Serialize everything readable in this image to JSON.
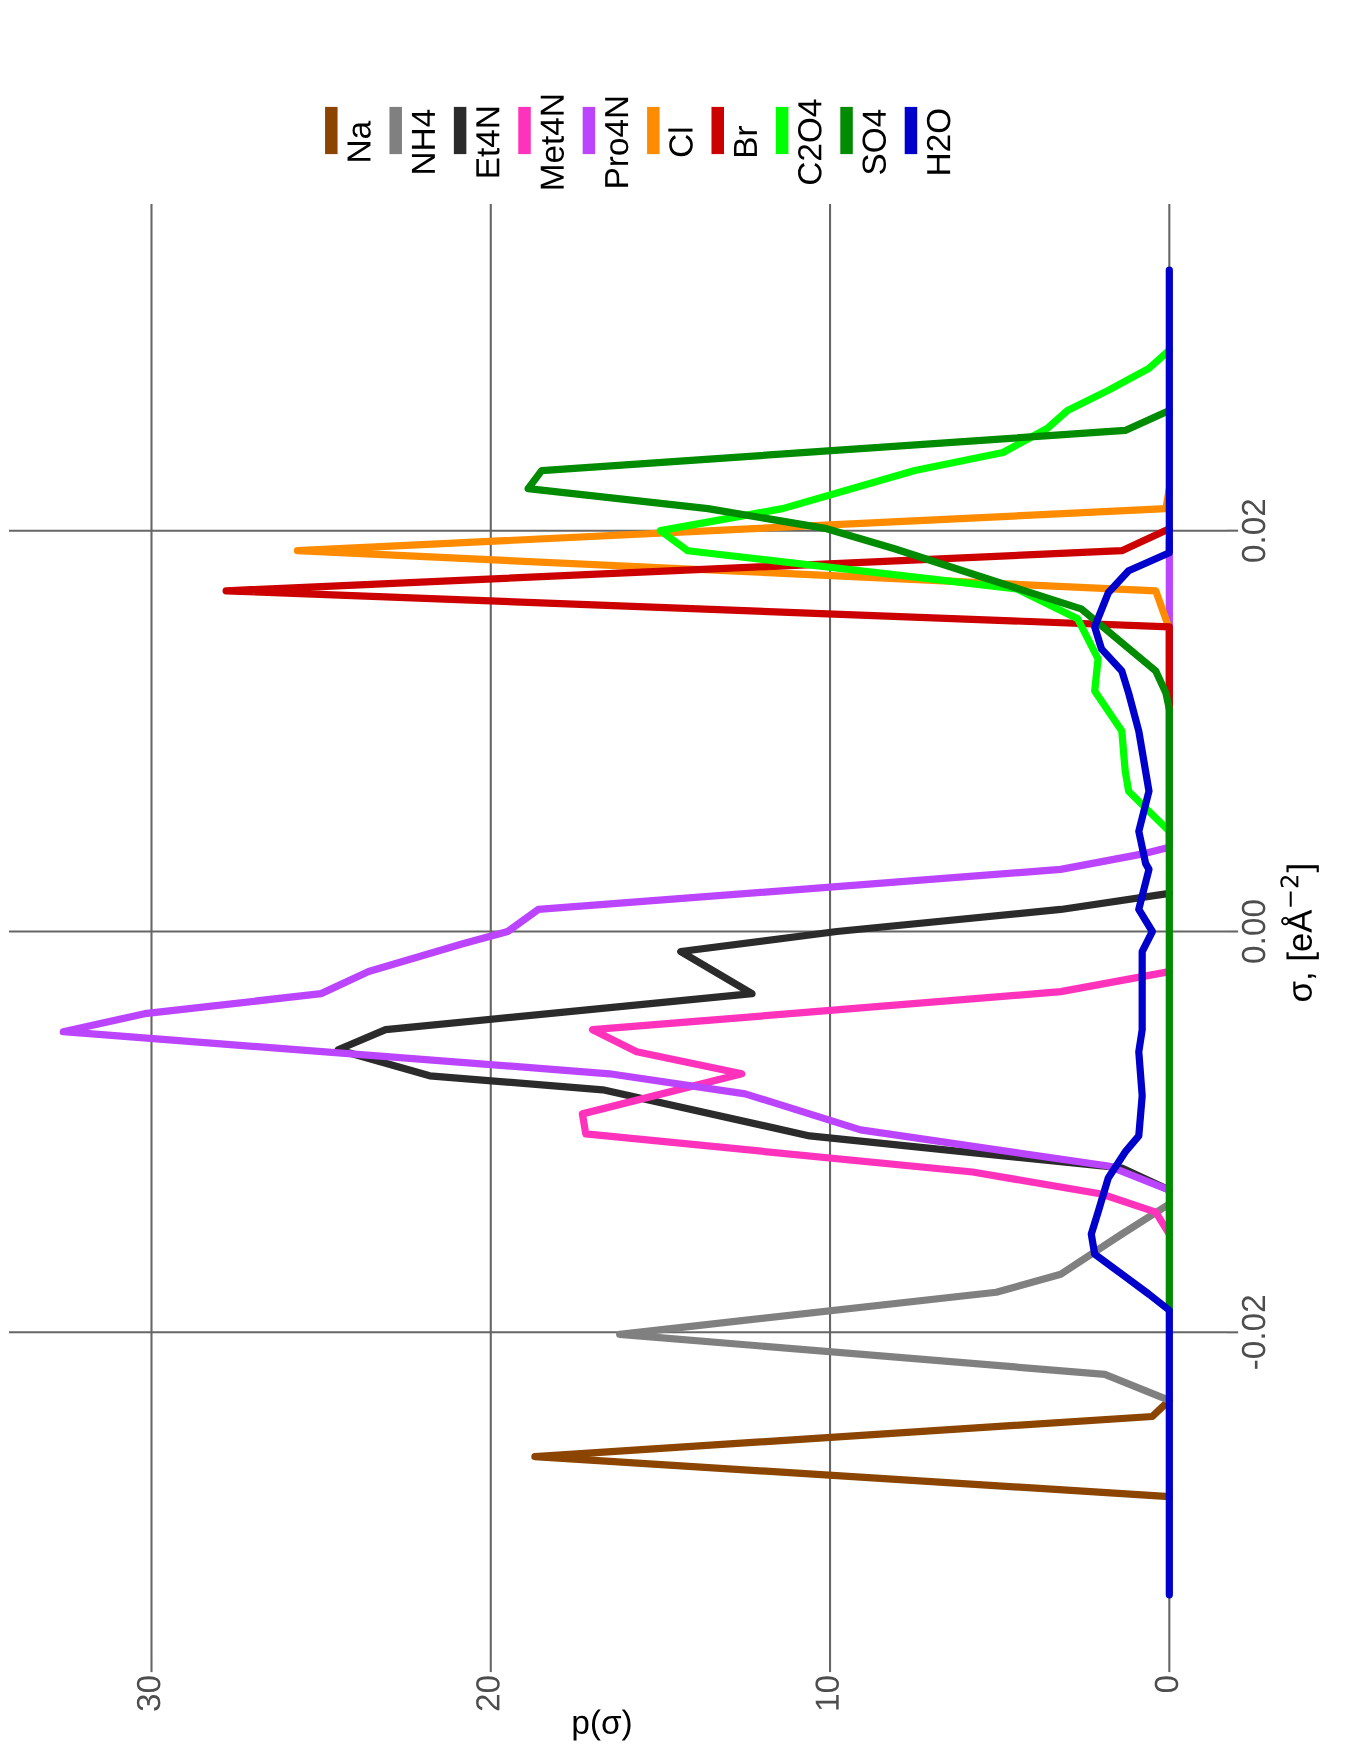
{
  "chart_data": {
    "type": "line",
    "xlabel": "p(σ)",
    "ylabel": "σ, [eÅ$^{−2}$]",
    "xlim": [
      34.2,
      -1.7
    ],
    "ylim": [
      -0.0364,
      0.0363
    ],
    "xticks": [
      0,
      10,
      20,
      30
    ],
    "yticks": [
      {
        "value": -0.02,
        "label": "-0.02"
      },
      {
        "value": 0,
        "label": "0.00"
      },
      {
        "value": 0.02,
        "label": "0.02"
      }
    ],
    "grid": true,
    "legend": "top",
    "line_style": "solid",
    "series": [
      {
        "name": "Na",
        "color": "#8b4500",
        "values": [
          -0.0282,
          -0.0262,
          -0.0242,
          -0.0234
        ],
        "x": [
          0,
          18.7,
          0.5,
          0
        ]
      },
      {
        "name": "NH4",
        "color": "#808080",
        "values": [
          -0.0234,
          -0.0221,
          -0.0201,
          -0.018,
          -0.0171,
          -0.0151,
          -0.0136
        ],
        "x": [
          0,
          1.9,
          16.2,
          5.1,
          3.2,
          1.4,
          0
        ]
      },
      {
        "name": "Et4N",
        "color": "#2b2b2b",
        "values": [
          -0.0129,
          -0.0118,
          -0.0102,
          -0.0079,
          -0.0072,
          -0.0059,
          -0.0049,
          -0.0031,
          -0.001,
          0.0,
          0.0011,
          0.0019
        ],
        "x": [
          0,
          1.4,
          10.6,
          16.7,
          21.8,
          24.5,
          23.1,
          12.3,
          14.4,
          9.8,
          3.2,
          0
        ]
      },
      {
        "name": "Met4N",
        "color": "#ff33bb",
        "values": [
          -0.0151,
          -0.014,
          -0.0131,
          -0.012,
          -0.0101,
          -0.0091,
          -0.0071,
          -0.006,
          -0.0049,
          -0.003,
          -0.002
        ],
        "x": [
          0,
          0.4,
          2.0,
          5.8,
          17.2,
          17.3,
          12.6,
          15.7,
          17.0,
          3.2,
          0
        ]
      },
      {
        "name": "Pro4N",
        "color": "#bb44ff",
        "values": [
          -0.0129,
          -0.0117,
          -0.0099,
          -0.0081,
          -0.0071,
          -0.005,
          -0.0041,
          -0.0031,
          -0.002,
          -0.0006,
          0.0,
          0.0011,
          0.0031,
          0.0039,
          0.0042,
          0.0195
        ],
        "x": [
          0,
          1.8,
          9.1,
          12.5,
          16.5,
          32.6,
          30.2,
          25.0,
          23.6,
          20.8,
          19.5,
          18.6,
          3.2,
          0.7,
          0,
          0
        ]
      },
      {
        "name": "Cl",
        "color": "#ff8c00",
        "values": [
          0.0151,
          0.017,
          0.019,
          0.0211,
          0.0221
        ],
        "x": [
          0,
          0.4,
          25.7,
          0.1,
          0
        ]
      },
      {
        "name": "Br",
        "color": "#cc0000",
        "values": [
          0.0111,
          0.0152,
          0.017,
          0.019,
          0.0201
        ],
        "x": [
          0,
          0,
          27.8,
          1.4,
          0
        ]
      },
      {
        "name": "C2O4",
        "color": "#00ff00",
        "values": [
          0.005,
          0.007,
          0.008,
          0.01,
          0.012,
          0.0136,
          0.0156,
          0.0171,
          0.019,
          0.02,
          0.0211,
          0.023,
          0.0239,
          0.0251,
          0.026,
          0.027,
          0.0281,
          0.029
        ],
        "x": [
          0,
          1.2,
          1.3,
          1.4,
          2.2,
          2.1,
          2.7,
          4.5,
          14.2,
          15.0,
          11.4,
          7.5,
          4.9,
          3.6,
          3.0,
          1.8,
          0.6,
          0
        ]
      },
      {
        "name": "SO4",
        "color": "#008b00",
        "values": [
          -0.0189,
          0.0111,
          0.0119,
          0.013,
          0.0161,
          0.0174,
          0.0191,
          0.0201,
          0.0211,
          0.0221,
          0.023,
          0.025,
          0.026
        ],
        "x": [
          0,
          0,
          0.1,
          0.4,
          2.6,
          5.0,
          8.1,
          10.1,
          13.6,
          18.9,
          18.5,
          1.3,
          0
        ]
      },
      {
        "name": "H2O",
        "color": "#0000cd",
        "values": [
          -0.0331,
          -0.0189,
          -0.0181,
          -0.0171,
          -0.0161,
          -0.0151,
          -0.014,
          -0.0123,
          -0.011,
          -0.0102,
          -0.0082,
          -0.006,
          -0.0049,
          -0.001,
          0.0,
          0.0011,
          0.0031,
          0.0034,
          0.005,
          0.007,
          0.008,
          0.01,
          0.0119,
          0.013,
          0.0141,
          0.0152,
          0.0169,
          0.018,
          0.0189,
          0.0199,
          0.033
        ],
        "x": [
          0,
          0,
          0.6,
          1.4,
          2.2,
          2.3,
          2.1,
          1.8,
          1.3,
          0.9,
          0.8,
          0.9,
          0.8,
          0.8,
          0.5,
          0.9,
          0.6,
          0.7,
          0.9,
          0.6,
          0.7,
          0.9,
          1.2,
          1.4,
          2.0,
          2.2,
          1.8,
          1.2,
          0,
          0,
          0
        ]
      }
    ]
  }
}
